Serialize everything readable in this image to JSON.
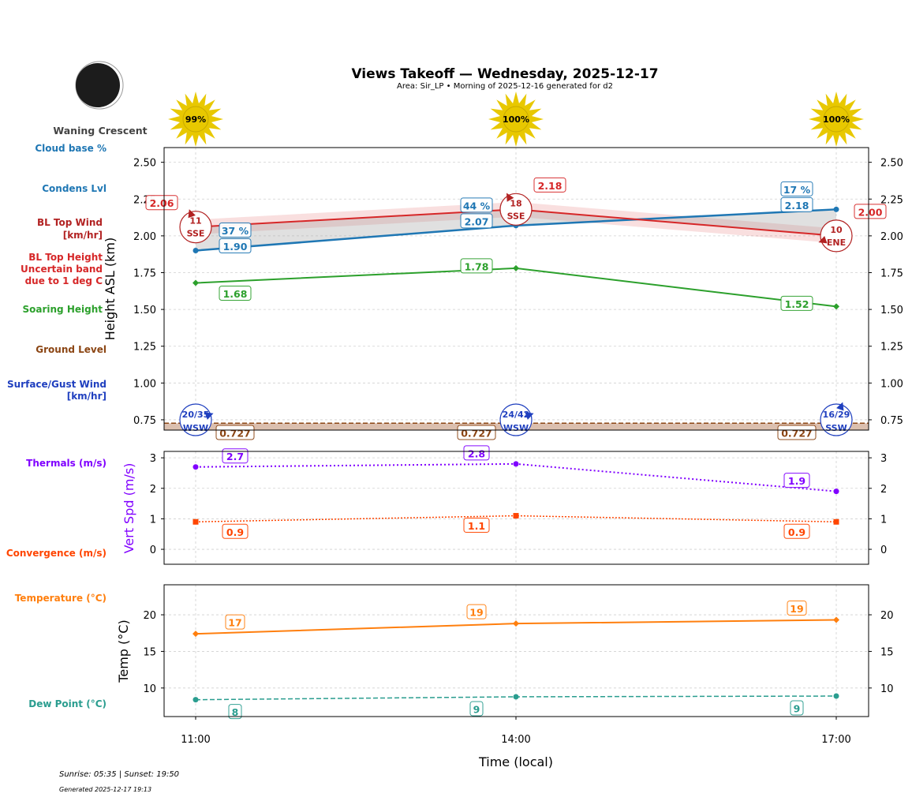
{
  "title": "Views Takeoff — Wednesday, 2025-12-17",
  "subtitle": "Area: Sir_LP • Morning of 2025-12-16 generated for d2",
  "moon": {
    "phase": "Waning Crescent",
    "icon": "moon-waning-crescent-icon"
  },
  "sun_percent": [
    "99%",
    "100%",
    "100%"
  ],
  "footer": {
    "sun_times": "Sunrise: 05:35 | Sunset: 19:50",
    "generated": "Generated 2025-12-17 19:13"
  },
  "left_labels": {
    "cloud_base": "Cloud base %",
    "condens": "Condens Lvl",
    "bl_wind_1": "BL Top Wind",
    "bl_wind_2": "[km/hr]",
    "bl_height_1": "BL Top Height",
    "bl_height_2": "Uncertain band",
    "bl_height_3": "due to 1 deg C",
    "soaring": "Soaring Height",
    "ground": "Ground Level",
    "surface_1": "Surface/Gust Wind",
    "surface_2": "[km/hr]",
    "thermals": "Thermals (m/s)",
    "convergence": "Convergence (m/s)",
    "temperature": "Temperature (°C)",
    "dewpoint": "Dew Point (°C)"
  },
  "colors": {
    "cloud": "#1f77b4",
    "bl_top": "#d62728",
    "bl_wind": "#b22222",
    "soaring": "#2ca02c",
    "ground": "#8b4513",
    "ground_fill": "#dbbfae",
    "surface_wind": "#1f3fbf",
    "thermals": "#8000ff",
    "convergence": "#ff4500",
    "temperature": "#ff7f0e",
    "dewpoint": "#2a9d8f",
    "sun": "#e8c800"
  },
  "chart_data": [
    {
      "type": "line",
      "ylabel": "Height ASL (km)",
      "ylim": [
        0.68,
        2.6
      ],
      "yticks": [
        "0.75",
        "1.00",
        "1.25",
        "1.50",
        "1.75",
        "2.00",
        "2.25",
        "2.50"
      ],
      "x": [
        "11:00",
        "14:00",
        "17:00"
      ],
      "grid": true,
      "series": [
        {
          "key": "condens",
          "values": [
            1.9,
            2.07,
            2.18
          ],
          "labels": [
            "1.90",
            "2.07",
            "2.18"
          ]
        },
        {
          "key": "cloud_pct",
          "values": [
            37,
            44,
            17
          ],
          "labels": [
            "37 %",
            "44 %",
            "17 %"
          ]
        },
        {
          "key": "bl_top",
          "values": [
            2.06,
            2.18,
            2.0
          ],
          "labels": [
            "2.06",
            "2.18",
            "2.00"
          ],
          "uncertainty": 0.05
        },
        {
          "key": "soaring",
          "values": [
            1.68,
            1.78,
            1.52
          ],
          "labels": [
            "1.68",
            "1.78",
            "1.52"
          ]
        },
        {
          "key": "ground",
          "values": [
            0.727,
            0.727,
            0.727
          ],
          "labels": [
            "0.727",
            "0.727",
            "0.727"
          ]
        }
      ],
      "bl_wind": [
        {
          "speed": "11",
          "dir": "SSE"
        },
        {
          "speed": "18",
          "dir": "SSE"
        },
        {
          "speed": "10",
          "dir": "ENE"
        }
      ],
      "surface_wind": [
        {
          "speed": "20/35",
          "dir": "WSW"
        },
        {
          "speed": "24/42",
          "dir": "WSW"
        },
        {
          "speed": "16/29",
          "dir": "SSW"
        }
      ]
    },
    {
      "type": "line",
      "ylabel": "Vert Spd (m/s)",
      "ylim": [
        -0.49,
        3.21
      ],
      "yticks": [
        "0",
        "1",
        "2",
        "3"
      ],
      "x": [
        "11:00",
        "14:00",
        "17:00"
      ],
      "grid": true,
      "series": [
        {
          "key": "thermals",
          "values": [
            2.7,
            2.8,
            1.9
          ],
          "labels": [
            "2.7",
            "2.8",
            "1.9"
          ]
        },
        {
          "key": "convergence",
          "values": [
            0.9,
            1.1,
            0.9
          ],
          "labels": [
            "0.9",
            "1.1",
            "0.9"
          ]
        }
      ]
    },
    {
      "type": "line",
      "ylabel": "Temp (°C)",
      "xlabel": "Time (local)",
      "ylim": [
        6.1,
        24.1
      ],
      "yticks": [
        "10",
        "15",
        "20"
      ],
      "x": [
        "11:00",
        "14:00",
        "17:00"
      ],
      "grid": true,
      "series": [
        {
          "key": "temperature",
          "values": [
            17.4,
            18.8,
            19.3
          ],
          "labels": [
            "17",
            "19",
            "19"
          ]
        },
        {
          "key": "dewpoint",
          "values": [
            8.4,
            8.8,
            8.9
          ],
          "labels": [
            "8",
            "9",
            "9"
          ]
        }
      ]
    }
  ]
}
